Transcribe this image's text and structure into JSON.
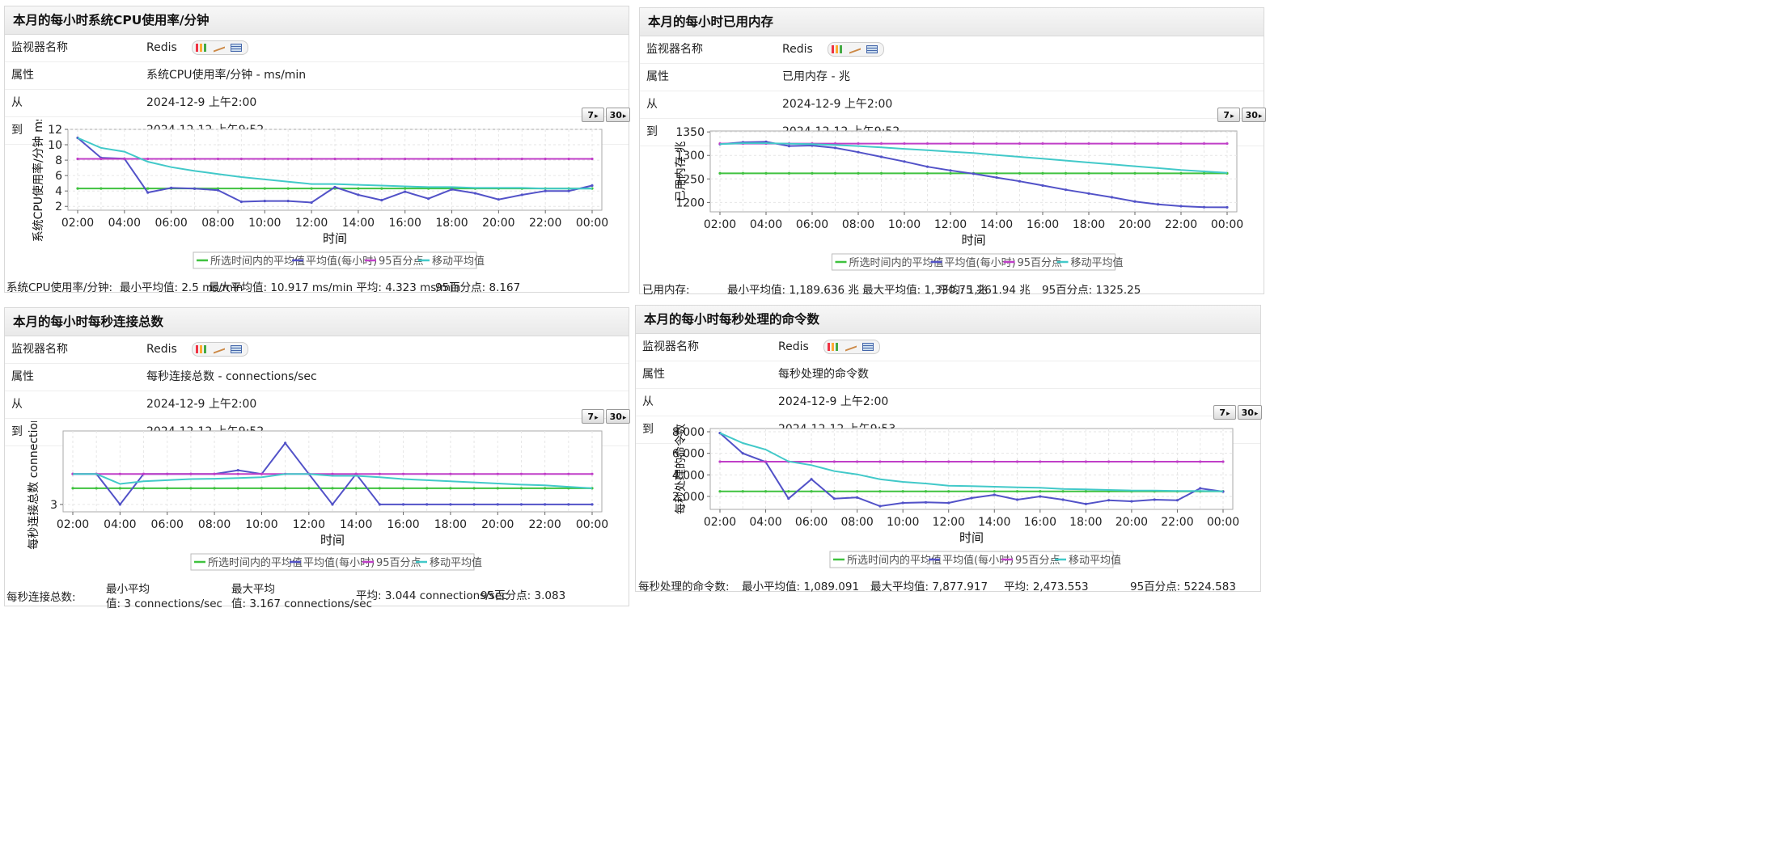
{
  "labels": {
    "monitor_name": "监视器名称",
    "attribute": "属性",
    "from": "从",
    "to": "到",
    "btn7": "7",
    "btn30": "30",
    "xlabel": "时间"
  },
  "legend": [
    "所选时间内的平均值",
    "平均值(每小时)",
    "95百分点",
    "移动平均值"
  ],
  "colors": {
    "avg": "#3fc23f",
    "hourly": "#5252c8",
    "p95": "#c03fc8",
    "moving": "#42c9c9"
  },
  "panels": [
    {
      "title": "本月的每小时系统CPU使用率/分钟",
      "monitor": "Redis",
      "attribute": "系统CPU使用率/分钟 - ms/min",
      "from": "2024-12-9 上午2:00",
      "to": "2024-12-12 上午9:52",
      "stats": {
        "label": "系统CPU使用率/分钟:",
        "min": "最小平均值:  2.5  ms/min",
        "max": "最大平均值:  10.917  ms/min 平均:  4.323  ms/min",
        "p95": "95百分点:  8.167"
      }
    },
    {
      "title": "本月的每小时已用内存",
      "monitor": "Redis",
      "attribute": "已用内存 - 兆",
      "from": "2024-12-9 上午2:00",
      "to": "2024-12-12 上午9:52",
      "stats": {
        "label": "已用内存:",
        "min": "最小平均值:  1,189.636  兆 最大平均值:  1,330.75  兆",
        "max": "平均:  1,261.94  兆",
        "p95": "95百分点:  1325.25"
      }
    },
    {
      "title": "本月的每小时每秒连接总数",
      "monitor": "Redis",
      "attribute": "每秒连接总数 - connections/sec",
      "from": "2024-12-9 上午2:00",
      "to": "2024-12-12 上午9:52",
      "stats": {
        "label": "每秒连接总数:",
        "min1": "最小平均",
        "min2": "值:  3  connections/sec",
        "max1": "最大平均",
        "max2": "值:  3.167  connections/sec",
        "avg": "平均:  3.044  connections/sec",
        "p95": "95百分点:  3.083"
      }
    },
    {
      "title": "本月的每小时每秒处理的命令数",
      "monitor": "Redis",
      "attribute": "每秒处理的命令数",
      "from": "2024-12-9 上午2:00",
      "to": "2024-12-12 上午9:53",
      "stats": {
        "label": "每秒处理的命令数:",
        "min": "最小平均值:  1,089.091",
        "max": "最大平均值:  7,877.917",
        "avg": "平均:  2,473.553",
        "p95": "95百分点:  5224.583"
      }
    }
  ],
  "chart_data": [
    {
      "type": "line",
      "ylabel": "系统CPU使用率/分钟 ms/mi",
      "xlabel": "时间",
      "x": [
        "02:00",
        "03:00",
        "04:00",
        "05:00",
        "06:00",
        "07:00",
        "08:00",
        "09:00",
        "10:00",
        "11:00",
        "12:00",
        "13:00",
        "14:00",
        "15:00",
        "16:00",
        "17:00",
        "18:00",
        "19:00",
        "20:00",
        "21:00",
        "22:00",
        "23:00",
        "00:00"
      ],
      "xticks": [
        "02:00",
        "04:00",
        "06:00",
        "08:00",
        "10:00",
        "12:00",
        "14:00",
        "16:00",
        "18:00",
        "20:00",
        "22:00",
        "00:00"
      ],
      "yticks": [
        "2",
        "4",
        "6",
        "8",
        "10",
        "12"
      ],
      "ylim": [
        1.5,
        12
      ],
      "series": [
        {
          "name": "所选时间内的平均值",
          "values": [
            4.32,
            4.32,
            4.32,
            4.32,
            4.32,
            4.32,
            4.32,
            4.32,
            4.32,
            4.32,
            4.32,
            4.32,
            4.32,
            4.32,
            4.32,
            4.32,
            4.32,
            4.32,
            4.32,
            4.32,
            4.32,
            4.32,
            4.32
          ]
        },
        {
          "name": "平均值(每小时)",
          "values": [
            10.9,
            8.3,
            8.2,
            3.8,
            4.4,
            4.3,
            4.1,
            2.6,
            2.7,
            2.7,
            2.5,
            4.5,
            3.5,
            2.8,
            3.9,
            3.0,
            4.2,
            3.7,
            2.9,
            3.5,
            4.0,
            4.0,
            4.7
          ]
        },
        {
          "name": "95百分点",
          "values": [
            8.17,
            8.17,
            8.17,
            8.17,
            8.17,
            8.17,
            8.17,
            8.17,
            8.17,
            8.17,
            8.17,
            8.17,
            8.17,
            8.17,
            8.17,
            8.17,
            8.17,
            8.17,
            8.17,
            8.17,
            8.17,
            8.17,
            8.17
          ]
        },
        {
          "name": "移动平均值",
          "values": [
            10.9,
            9.6,
            9.1,
            7.8,
            7.1,
            6.6,
            6.2,
            5.8,
            5.5,
            5.2,
            4.9,
            4.9,
            4.8,
            4.7,
            4.6,
            4.5,
            4.5,
            4.4,
            4.4,
            4.4,
            4.3,
            4.3,
            4.3
          ]
        }
      ]
    },
    {
      "type": "line",
      "ylabel": "已用内存 兆",
      "xlabel": "时间",
      "x": [
        "02:00",
        "03:00",
        "04:00",
        "05:00",
        "06:00",
        "07:00",
        "08:00",
        "09:00",
        "10:00",
        "11:00",
        "12:00",
        "13:00",
        "14:00",
        "15:00",
        "16:00",
        "17:00",
        "18:00",
        "19:00",
        "20:00",
        "21:00",
        "22:00",
        "23:00",
        "00:00"
      ],
      "xticks": [
        "02:00",
        "04:00",
        "06:00",
        "08:00",
        "10:00",
        "12:00",
        "14:00",
        "16:00",
        "18:00",
        "20:00",
        "22:00",
        "00:00"
      ],
      "yticks": [
        "1200",
        "1250",
        "1300",
        "1350"
      ],
      "ylim": [
        1180,
        1352
      ],
      "series": [
        {
          "name": "所选时间内的平均值",
          "values": [
            1261.9,
            1261.9,
            1261.9,
            1261.9,
            1261.9,
            1261.9,
            1261.9,
            1261.9,
            1261.9,
            1261.9,
            1261.9,
            1261.9,
            1261.9,
            1261.9,
            1261.9,
            1261.9,
            1261.9,
            1261.9,
            1261.9,
            1261.9,
            1261.9,
            1261.9,
            1261.9
          ]
        },
        {
          "name": "平均值(每小时)",
          "values": [
            1324,
            1328,
            1329,
            1320,
            1321,
            1316,
            1307,
            1297,
            1287,
            1276,
            1268,
            1261,
            1253,
            1245,
            1236,
            1227,
            1219,
            1211,
            1202,
            1196,
            1192,
            1190,
            1189.6
          ]
        },
        {
          "name": "95百分点",
          "values": [
            1325.25,
            1325.25,
            1325.25,
            1325.25,
            1325.25,
            1325.25,
            1325.25,
            1325.25,
            1325.25,
            1325.25,
            1325.25,
            1325.25,
            1325.25,
            1325.25,
            1325.25,
            1325.25,
            1325.25,
            1325.25,
            1325.25,
            1325.25,
            1325.25,
            1325.25,
            1325.25
          ]
        },
        {
          "name": "移动平均值",
          "values": [
            1324,
            1326,
            1326,
            1325,
            1324,
            1322,
            1320,
            1317,
            1314,
            1311,
            1308,
            1305,
            1301,
            1297,
            1293,
            1289,
            1285,
            1281,
            1277,
            1273,
            1269,
            1266,
            1263
          ]
        }
      ]
    },
    {
      "type": "line",
      "ylabel": "每秒连接总数  connections/se",
      "xlabel": "时间",
      "x": [
        "02:00",
        "03:00",
        "04:00",
        "05:00",
        "06:00",
        "07:00",
        "08:00",
        "09:00",
        "10:00",
        "11:00",
        "12:00",
        "13:00",
        "14:00",
        "15:00",
        "16:00",
        "17:00",
        "18:00",
        "19:00",
        "20:00",
        "21:00",
        "22:00",
        "23:00",
        "00:00"
      ],
      "xticks": [
        "02:00",
        "04:00",
        "06:00",
        "08:00",
        "10:00",
        "12:00",
        "14:00",
        "16:00",
        "18:00",
        "20:00",
        "22:00",
        "00:00"
      ],
      "yticks": [
        "3"
      ],
      "ylim": [
        2.98,
        3.2
      ],
      "series": [
        {
          "name": "所选时间内的平均值",
          "values": [
            3.044,
            3.044,
            3.044,
            3.044,
            3.044,
            3.044,
            3.044,
            3.044,
            3.044,
            3.044,
            3.044,
            3.044,
            3.044,
            3.044,
            3.044,
            3.044,
            3.044,
            3.044,
            3.044,
            3.044,
            3.044,
            3.044,
            3.044
          ]
        },
        {
          "name": "平均值(每小时)",
          "values": [
            3.083,
            3.083,
            3.0,
            3.083,
            3.083,
            3.083,
            3.083,
            3.093,
            3.083,
            3.167,
            3.083,
            3.0,
            3.083,
            3.0,
            3.0,
            3.0,
            3.0,
            3.0,
            3.0,
            3.0,
            3.0,
            3.0,
            3.0
          ]
        },
        {
          "name": "95百分点",
          "values": [
            3.083,
            3.083,
            3.083,
            3.083,
            3.083,
            3.083,
            3.083,
            3.083,
            3.083,
            3.083,
            3.083,
            3.083,
            3.083,
            3.083,
            3.083,
            3.083,
            3.083,
            3.083,
            3.083,
            3.083,
            3.083,
            3.083,
            3.083
          ]
        },
        {
          "name": "移动平均值",
          "values": [
            3.083,
            3.083,
            3.056,
            3.063,
            3.066,
            3.069,
            3.07,
            3.072,
            3.074,
            3.083,
            3.083,
            3.078,
            3.078,
            3.074,
            3.069,
            3.066,
            3.063,
            3.06,
            3.057,
            3.054,
            3.052,
            3.048,
            3.044
          ]
        }
      ]
    },
    {
      "type": "line",
      "ylabel": "每秒处理的命令数",
      "xlabel": "时间",
      "x": [
        "02:00",
        "03:00",
        "04:00",
        "05:00",
        "06:00",
        "07:00",
        "08:00",
        "09:00",
        "10:00",
        "11:00",
        "12:00",
        "13:00",
        "14:00",
        "15:00",
        "16:00",
        "17:00",
        "18:00",
        "19:00",
        "20:00",
        "21:00",
        "22:00",
        "23:00",
        "00:00"
      ],
      "xticks": [
        "02:00",
        "04:00",
        "06:00",
        "08:00",
        "10:00",
        "12:00",
        "14:00",
        "16:00",
        "18:00",
        "20:00",
        "22:00",
        "00:00"
      ],
      "yticks": [
        "2,000",
        "4,000",
        "6,000",
        "8,000"
      ],
      "ylim": [
        800,
        8300
      ],
      "series": [
        {
          "name": "所选时间内的平均值",
          "values": [
            2473,
            2473,
            2473,
            2473,
            2473,
            2473,
            2473,
            2473,
            2473,
            2473,
            2473,
            2473,
            2473,
            2473,
            2473,
            2473,
            2473,
            2473,
            2473,
            2473,
            2473,
            2473,
            2473
          ]
        },
        {
          "name": "平均值(每小时)",
          "values": [
            7878,
            6000,
            5200,
            1800,
            3600,
            1800,
            1900,
            1100,
            1400,
            1450,
            1400,
            1850,
            2150,
            1700,
            2000,
            1700,
            1300,
            1650,
            1550,
            1700,
            1650,
            2750,
            2450
          ]
        },
        {
          "name": "95百分点",
          "values": [
            5225,
            5225,
            5225,
            5225,
            5225,
            5225,
            5225,
            5225,
            5225,
            5225,
            5225,
            5225,
            5225,
            5225,
            5225,
            5225,
            5225,
            5225,
            5225,
            5225,
            5225,
            5225,
            5225
          ]
        },
        {
          "name": "移动平均值",
          "values": [
            7878,
            6950,
            6350,
            5250,
            4900,
            4350,
            4050,
            3600,
            3350,
            3200,
            3000,
            2950,
            2900,
            2850,
            2800,
            2700,
            2650,
            2600,
            2550,
            2550,
            2500,
            2500,
            2480
          ]
        }
      ]
    }
  ]
}
